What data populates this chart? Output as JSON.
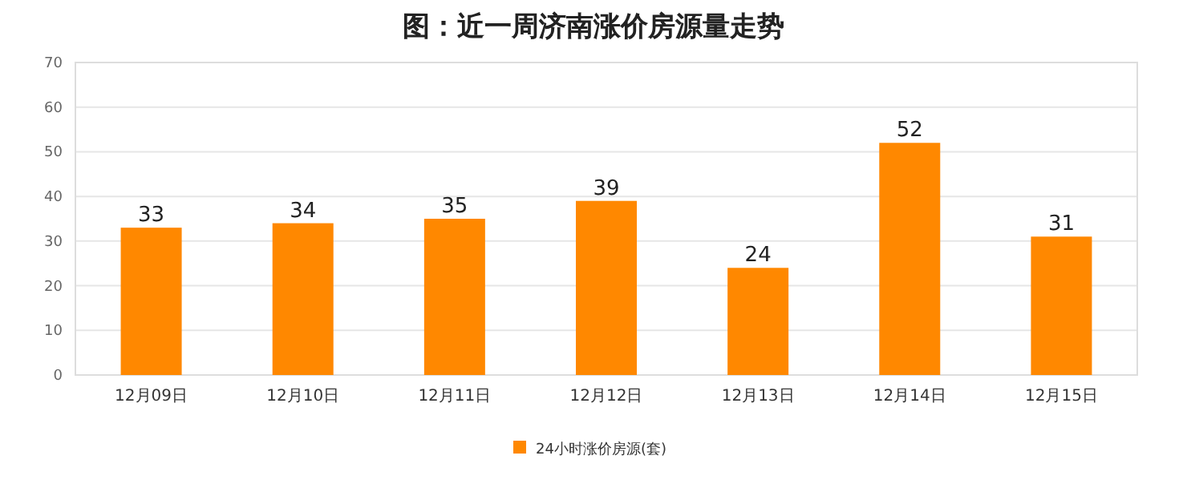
{
  "chart_data": {
    "type": "bar",
    "title": "图：近一周济南涨价房源量走势",
    "categories": [
      "12月09日",
      "12月10日",
      "12月11日",
      "12月12日",
      "12月13日",
      "12月14日",
      "12月15日"
    ],
    "series": [
      {
        "name": "24小时涨价房源(套)",
        "color": "#ff8800",
        "values": [
          33,
          34,
          35,
          39,
          24,
          52,
          31
        ]
      }
    ],
    "ylim": [
      0,
      70
    ],
    "yticks": [
      0,
      10,
      20,
      30,
      40,
      50,
      60,
      70
    ],
    "grid": "y",
    "legend": "bottom",
    "data_labels": true
  }
}
